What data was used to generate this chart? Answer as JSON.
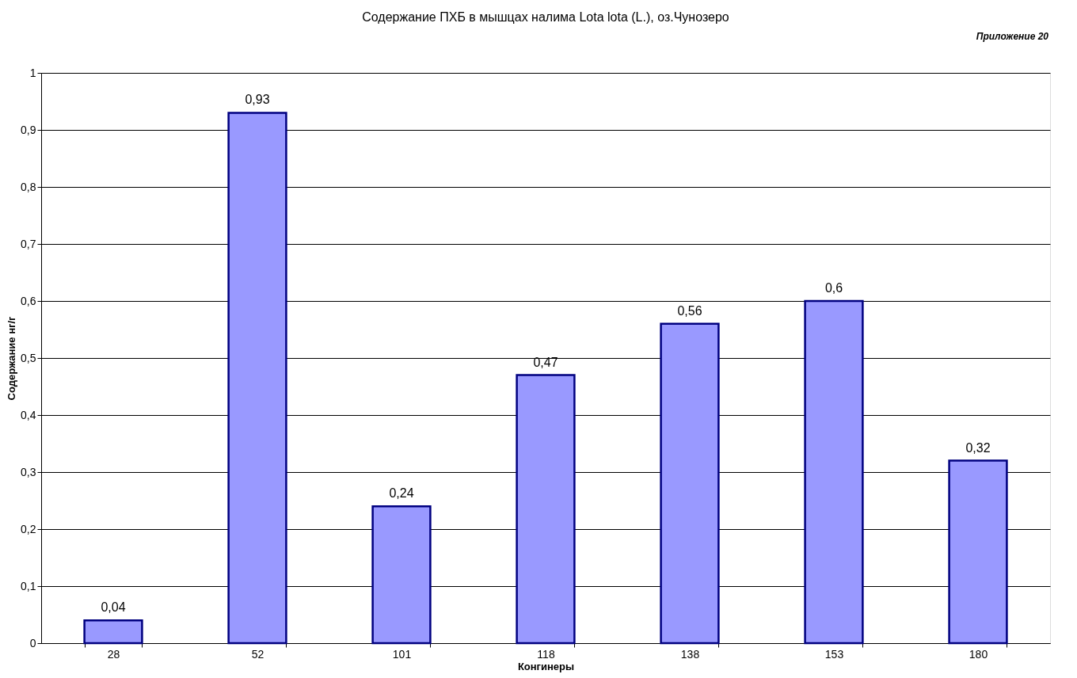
{
  "chart_data": {
    "type": "bar",
    "title": "Содержание ПХБ в мышцах налима Lota lota (L.), оз.Чунозеро",
    "xlabel": "Конгинеры",
    "ylabel": "Содержание нг/г",
    "annotations": [
      "Приложение 20"
    ],
    "categories": [
      "28",
      "52",
      "101",
      "118",
      "138",
      "153",
      "180"
    ],
    "values": [
      0.04,
      0.93,
      0.24,
      0.47,
      0.56,
      0.6,
      0.32
    ],
    "value_labels": [
      "0,04",
      "0,93",
      "0,24",
      "0,47",
      "0,56",
      "0,6",
      "0,32"
    ],
    "color": "#9999ff",
    "grid": "y",
    "ylim": [
      0,
      1
    ],
    "yticks": [
      0,
      {
        "value": 0.1,
        "label": "0,1"
      },
      {
        "value": 0.2,
        "label": "0,2"
      },
      {
        "value": 0.3,
        "label": "0,3"
      },
      {
        "value": 0.4,
        "label": "0,4"
      },
      {
        "value": 0.5,
        "label": "0,5"
      },
      {
        "value": 0.6,
        "label": "0,6"
      },
      {
        "value": 0.7,
        "label": "0,7"
      },
      {
        "value": 0.8,
        "label": "0,8"
      },
      {
        "value": 0.9,
        "label": "0,9"
      },
      1
    ]
  }
}
